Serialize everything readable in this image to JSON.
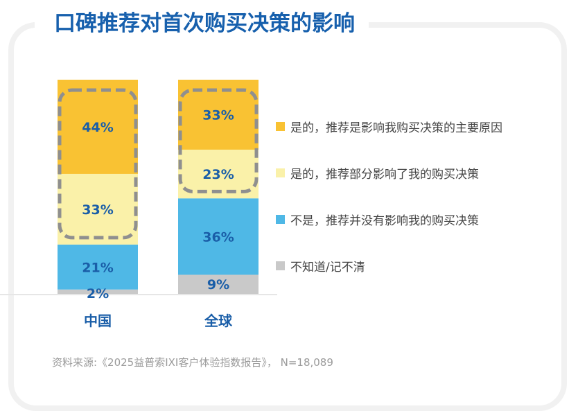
{
  "title": "口碑推荐对首次购买决策的影响",
  "source": "资料来源:《2025益普索IXI客户体验指数报告》， N=18,089",
  "chart_data": {
    "type": "bar",
    "stacked": true,
    "title": "口碑推荐对首次购买决策的影响",
    "categories": [
      "中国",
      "全球"
    ],
    "series": [
      {
        "name": "是的，推荐是影响我购买决策的主要原因",
        "values": [
          44,
          33
        ],
        "labels": [
          "44%",
          "33%"
        ],
        "color": "#f9c233"
      },
      {
        "name": "是的，推荐部分影响了我的购买决策",
        "values": [
          33,
          23
        ],
        "labels": [
          "33%",
          "23%"
        ],
        "color": "#faf1a9"
      },
      {
        "name": "不是，推荐并没有影响我的购买决策",
        "values": [
          21,
          36
        ],
        "labels": [
          "21%",
          "36%"
        ],
        "color": "#4fb8e6"
      },
      {
        "name": "不知道/记不清",
        "values": [
          2,
          9
        ],
        "labels": [
          "2%",
          "9%"
        ],
        "color": "#c9c9c9"
      }
    ],
    "ylim": [
      0,
      100
    ],
    "grid": false,
    "legend": "right",
    "highlight": "dashed rounded box around top two segments of each bar",
    "label_color": "#1a5ea8"
  }
}
